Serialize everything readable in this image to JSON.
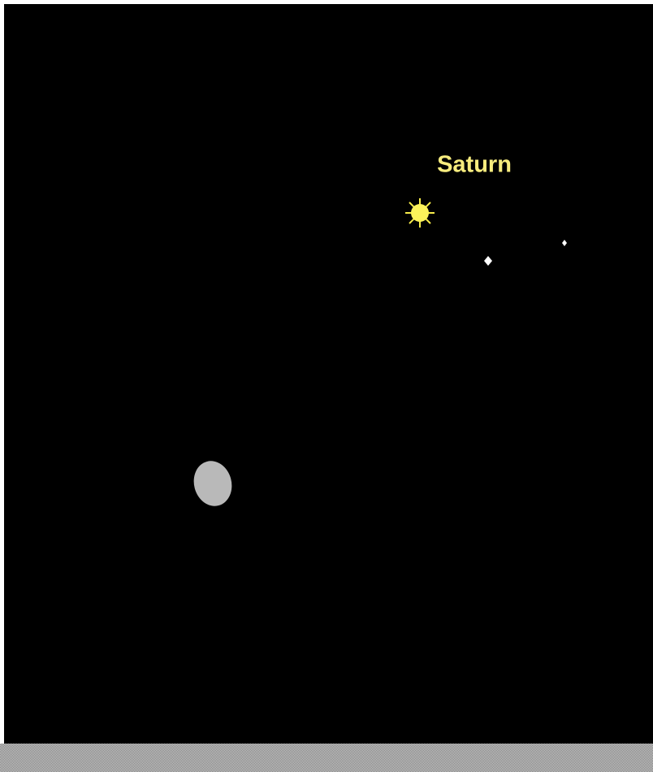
{
  "sky": {
    "planet_label": "Saturn"
  }
}
